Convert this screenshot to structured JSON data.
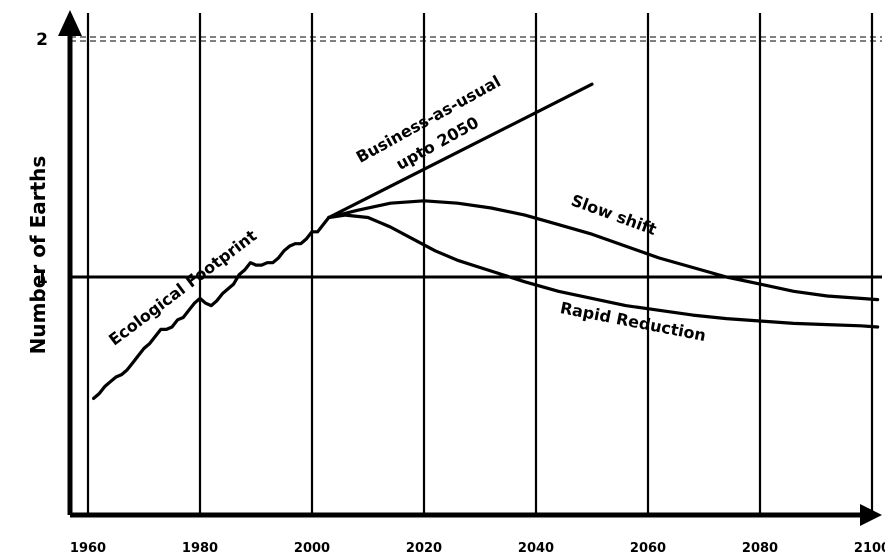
{
  "chart_data": {
    "type": "line",
    "ylabel": "Number of Earths",
    "xlabel": "",
    "xlim": [
      1950,
      2100
    ],
    "ylim": [
      0,
      2.05
    ],
    "x_ticks": [
      1960,
      1980,
      2000,
      2020,
      2040,
      2060,
      2080,
      2100
    ],
    "x_tick_labels": [
      "1960",
      "1980",
      "2000",
      "2020",
      "2040",
      "2060",
      "2080",
      "2100"
    ],
    "y_ticks": [
      1,
      2
    ],
    "y_tick_labels": [
      "1",
      "2"
    ],
    "reference_lines": {
      "solid_y": 1,
      "dashed_y": 2
    },
    "grid": "vertical lines at each x tick",
    "series": [
      {
        "key": "footprint",
        "x": [
          1961,
          1962,
          1963,
          1964,
          1965,
          1966,
          1967,
          1968,
          1969,
          1970,
          1971,
          1972,
          1973,
          1974,
          1975,
          1976,
          1977,
          1978,
          1979,
          1980,
          1981,
          1982,
          1983,
          1984,
          1985,
          1986,
          1987,
          1988,
          1989,
          1990,
          1991,
          1992,
          1993,
          1994,
          1995,
          1996,
          1997,
          1998,
          1999,
          2000,
          2001,
          2002,
          2003
        ],
        "y": [
          0.49,
          0.51,
          0.54,
          0.56,
          0.58,
          0.59,
          0.61,
          0.64,
          0.67,
          0.7,
          0.72,
          0.75,
          0.78,
          0.78,
          0.79,
          0.82,
          0.83,
          0.86,
          0.89,
          0.91,
          0.89,
          0.88,
          0.9,
          0.93,
          0.95,
          0.97,
          1.01,
          1.03,
          1.06,
          1.05,
          1.05,
          1.06,
          1.06,
          1.08,
          1.11,
          1.13,
          1.14,
          1.14,
          1.16,
          1.19,
          1.19,
          1.22,
          1.25
        ]
      },
      {
        "key": "business",
        "x": [
          2003,
          2050
        ],
        "y": [
          1.25,
          1.81
        ]
      },
      {
        "key": "slow",
        "x": [
          2003,
          2008,
          2014,
          2020,
          2026,
          2032,
          2038,
          2044,
          2050,
          2056,
          2062,
          2068,
          2074,
          2080,
          2086,
          2092,
          2098,
          2101
        ],
        "y": [
          1.25,
          1.28,
          1.31,
          1.32,
          1.31,
          1.29,
          1.26,
          1.22,
          1.18,
          1.13,
          1.08,
          1.04,
          1.0,
          0.97,
          0.94,
          0.92,
          0.91,
          0.905
        ]
      },
      {
        "key": "rapid",
        "x": [
          2003,
          2006,
          2010,
          2014,
          2018,
          2022,
          2026,
          2030,
          2034,
          2038,
          2044,
          2050,
          2056,
          2062,
          2068,
          2074,
          2080,
          2086,
          2092,
          2098,
          2101
        ],
        "y": [
          1.25,
          1.26,
          1.25,
          1.21,
          1.16,
          1.11,
          1.07,
          1.04,
          1.01,
          0.98,
          0.94,
          0.91,
          0.88,
          0.86,
          0.84,
          0.825,
          0.815,
          0.805,
          0.8,
          0.795,
          0.79
        ]
      }
    ],
    "annotations": [
      {
        "key": "footprint",
        "text": "Ecological Footprint"
      },
      {
        "key": "business_1",
        "text": "Business-as-usual"
      },
      {
        "key": "business_2",
        "text": "upto 2050"
      },
      {
        "key": "slow",
        "text": "Slow shift"
      },
      {
        "key": "rapid",
        "text": "Rapid Reduction"
      }
    ]
  }
}
